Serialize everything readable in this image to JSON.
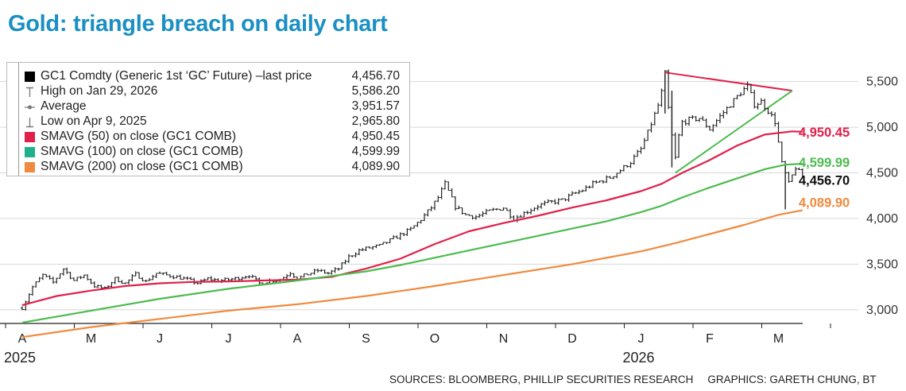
{
  "title": "Gold: triangle breach on daily chart",
  "legend": {
    "items": [
      {
        "label": "GC1 Comdty (Generic 1st ‘GC’ Future) –last price",
        "value": "4,456.70",
        "marker": "black-square",
        "color": "#000000"
      },
      {
        "label": "High on Jan 29, 2026",
        "value": "5,586.20",
        "marker": "high-tick",
        "color": "#777777"
      },
      {
        "label": "Average",
        "value": "3,951.57",
        "marker": "average-dot",
        "color": "#777777"
      },
      {
        "label": "Low on Apr 9, 2025",
        "value": "2,965.80",
        "marker": "low-tick",
        "color": "#777777"
      },
      {
        "label": "SMAVG (50) on close (GC1 COMB)",
        "value": "4,950.45",
        "marker": "square",
        "color": "#e0204a"
      },
      {
        "label": "SMAVG (100) on close (GC1 COMB)",
        "value": "4,599.99",
        "marker": "square",
        "color": "#1fb08e"
      },
      {
        "label": "SMAVG (200) on close (GC1 COMB)",
        "value": "4,089.90",
        "marker": "square",
        "color": "#f08a3e"
      }
    ]
  },
  "chart_data": {
    "type": "line",
    "title": "Gold: triangle breach on daily chart",
    "xlabel": "",
    "ylabel": "",
    "ylim": [
      2850,
      5680
    ],
    "yticks": [
      3000,
      3500,
      4000,
      4500,
      5000,
      5500
    ],
    "ytick_labels": [
      "3,000",
      "3,500",
      "4,000",
      "4,500",
      "5,000",
      "5,500"
    ],
    "months": [
      "A",
      "M",
      "J",
      "J",
      "A",
      "S",
      "O",
      "N",
      "D",
      "J",
      "F",
      "M"
    ],
    "years": [
      {
        "label": "2025",
        "month_index": 0
      },
      {
        "label": "2026",
        "month_index": 9
      }
    ],
    "price_series": {
      "name": "GC1 Comdty last price",
      "color": "#222222",
      "x": [
        0,
        0.15,
        0.3,
        0.45,
        0.6,
        0.75,
        0.9,
        1.05,
        1.2,
        1.35,
        1.5,
        1.65,
        1.8,
        1.95,
        2.1,
        2.25,
        2.4,
        2.55,
        2.7,
        2.85,
        3.0,
        3.15,
        3.3,
        3.45,
        3.6,
        3.75,
        3.9,
        4.0,
        4.15,
        4.3,
        4.45,
        4.6,
        4.75,
        4.9,
        5.05,
        5.2,
        5.35,
        5.5,
        5.65,
        5.8,
        5.95,
        6.05,
        6.15,
        6.3,
        6.45,
        6.6,
        6.8,
        7.0,
        7.15,
        7.3,
        7.5,
        7.7,
        7.85,
        8.0,
        8.15,
        8.3,
        8.45,
        8.55,
        8.7,
        8.85,
        9.0,
        9.1,
        9.2,
        9.28,
        9.35,
        9.42,
        9.5,
        9.58,
        9.7,
        9.85,
        10.0,
        10.15,
        10.3,
        10.45,
        10.55,
        10.65,
        10.75,
        10.85,
        10.95,
        11.05,
        11.15,
        11.25,
        11.35
      ],
      "values": [
        3020,
        3250,
        3380,
        3300,
        3450,
        3320,
        3380,
        3260,
        3230,
        3340,
        3290,
        3390,
        3310,
        3400,
        3380,
        3360,
        3330,
        3290,
        3340,
        3320,
        3330,
        3350,
        3380,
        3290,
        3320,
        3330,
        3410,
        3340,
        3390,
        3430,
        3400,
        3450,
        3580,
        3650,
        3680,
        3700,
        3760,
        3820,
        3880,
        3990,
        4120,
        4230,
        4380,
        4130,
        4040,
        4020,
        4080,
        4120,
        4000,
        4060,
        4140,
        4180,
        4200,
        4260,
        4310,
        4380,
        4420,
        4450,
        4530,
        4620,
        4760,
        4940,
        5140,
        5300,
        5586,
        5050,
        4660,
        5050,
        5080,
        5100,
        4980,
        5120,
        5250,
        5380,
        5450,
        5250,
        5280,
        5180,
        5060,
        4600,
        4380,
        4560,
        4456.7
      ]
    },
    "series": [
      {
        "name": "SMAVG (50) on close (GC1 COMB)",
        "color": "#e0204a",
        "x": [
          0,
          0.5,
          1,
          1.5,
          2,
          2.5,
          3,
          3.5,
          4,
          4.5,
          5,
          5.5,
          6,
          6.5,
          7,
          7.5,
          8,
          8.5,
          9,
          9.3,
          9.6,
          10,
          10.4,
          10.8,
          11.2,
          11.35
        ],
        "values": [
          3050,
          3150,
          3210,
          3260,
          3290,
          3305,
          3310,
          3320,
          3330,
          3360,
          3450,
          3560,
          3720,
          3860,
          3950,
          4030,
          4120,
          4200,
          4300,
          4380,
          4500,
          4640,
          4800,
          4920,
          4955,
          4950.45
        ],
        "end_label": "4,950.45"
      },
      {
        "name": "SMAVG (100) on close (GC1 COMB)",
        "color": "#4dbb4f",
        "x": [
          0,
          1,
          2,
          3,
          4,
          4.5,
          5,
          5.5,
          6,
          6.5,
          7,
          7.5,
          8,
          8.5,
          9,
          9.3,
          9.6,
          10,
          10.4,
          10.8,
          11.1,
          11.35
        ],
        "values": [
          2860,
          2990,
          3120,
          3230,
          3320,
          3370,
          3420,
          3490,
          3570,
          3650,
          3730,
          3810,
          3890,
          3970,
          4070,
          4140,
          4230,
          4340,
          4440,
          4540,
          4590,
          4599.99
        ],
        "end_label": "4,599.99"
      },
      {
        "name": "SMAVG (200) on close (GC1 COMB)",
        "color": "#f08a3e",
        "x": [
          0,
          1,
          2,
          3,
          4,
          5,
          6,
          7,
          8,
          9,
          9.5,
          10,
          10.5,
          11,
          11.35
        ],
        "values": [
          2700,
          2810,
          2900,
          2990,
          3060,
          3150,
          3260,
          3380,
          3500,
          3640,
          3730,
          3830,
          3930,
          4040,
          4089.9
        ],
        "end_label": "4,089.90"
      }
    ],
    "last_price_label": "4,456.70",
    "annotations": [
      {
        "type": "triangle-upper-line",
        "color": "#e0204a",
        "x": [
          9.35,
          11.2
        ],
        "values": [
          5600,
          5400
        ]
      },
      {
        "type": "triangle-lower-line",
        "color": "#4dbb4f",
        "x": [
          9.5,
          11.2
        ],
        "values": [
          4500,
          5400
        ]
      }
    ]
  },
  "footer": {
    "sources": "SOURCES: BLOOMBERG, PHILLIP SECURITIES RESEARCH",
    "graphics": "GRAPHICS: GARETH CHUNG, BT"
  }
}
